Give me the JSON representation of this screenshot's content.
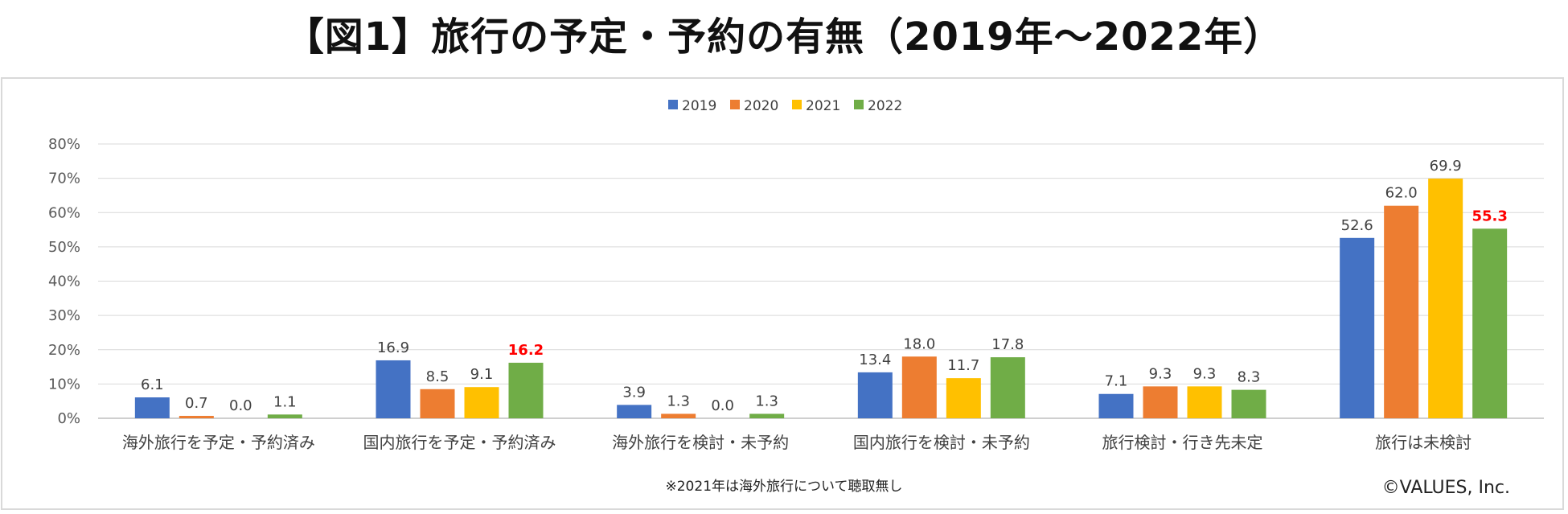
{
  "title": "【図1】旅行の予定・予約の有無（2019年〜2022年）",
  "note": "※2021年は海外旅行について聴取無し",
  "credit": "©VALUES, Inc.",
  "chart_data": {
    "type": "bar",
    "title": "【図1】旅行の予定・予約の有無（2019年〜2022年）",
    "categories": [
      "海外旅行を予定・予約済み",
      "国内旅行を予定・予約済み",
      "海外旅行を検討・未予約",
      "国内旅行を検討・未予約",
      "旅行検討・行き先未定",
      "旅行は未検討"
    ],
    "series": [
      {
        "name": "2019",
        "color": "#4472c4",
        "values": [
          6.1,
          16.9,
          3.9,
          13.4,
          7.1,
          52.6
        ],
        "labels": [
          "6.1",
          "16.9",
          "3.9",
          "13.4",
          "7.1",
          "52.6"
        ]
      },
      {
        "name": "2020",
        "color": "#ed7d31",
        "values": [
          0.7,
          8.5,
          1.3,
          18.0,
          9.3,
          62.0
        ],
        "labels": [
          "0.7",
          "8.5",
          "1.3",
          "18.0",
          "9.3",
          "62.0"
        ]
      },
      {
        "name": "2021",
        "color": "#ffc000",
        "values": [
          0.0,
          9.1,
          0.0,
          11.7,
          9.3,
          69.9
        ],
        "labels": [
          "0.0",
          "9.1",
          "0.0",
          "11.7",
          "9.3",
          "69.9"
        ]
      },
      {
        "name": "2022",
        "color": "#70ad47",
        "values": [
          1.1,
          16.2,
          1.3,
          17.8,
          8.3,
          55.3
        ],
        "labels": [
          "1.1",
          "16.2",
          "1.3",
          "17.8",
          "8.3",
          "55.3"
        ]
      }
    ],
    "highlight_series": "2022",
    "highlight_categories": [
      "国内旅行を予定・予約済み",
      "旅行は未検討"
    ],
    "highlight_color": "#ff0000",
    "ylim": [
      0,
      80
    ],
    "yticks": [
      0,
      10,
      20,
      30,
      40,
      50,
      60,
      70,
      80
    ],
    "ytick_labels": [
      "0%",
      "10%",
      "20%",
      "30%",
      "40%",
      "50%",
      "60%",
      "70%",
      "80%"
    ],
    "legend_position": "top-center",
    "grid": true,
    "xlabel": "",
    "ylabel": ""
  }
}
